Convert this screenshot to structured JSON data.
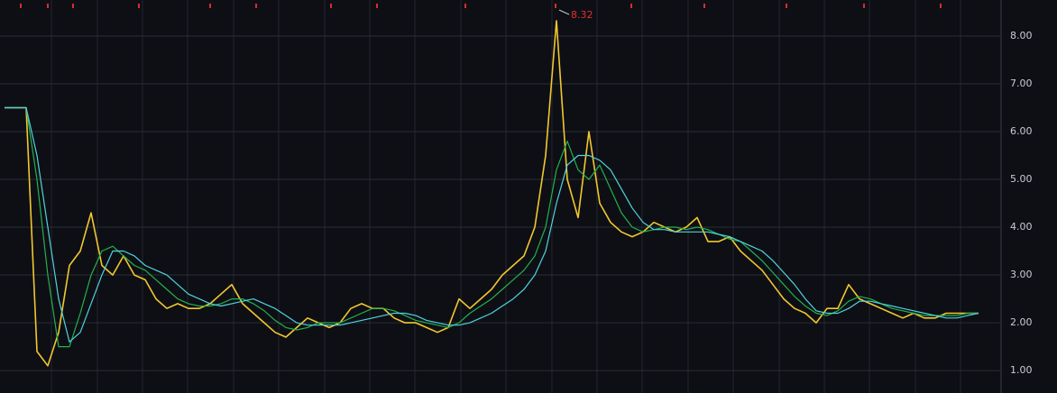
{
  "chart_data": {
    "type": "line",
    "annotation": 8.32,
    "ylim": [
      0.53,
      8.66
    ],
    "yticks": [
      {
        "value": 1,
        "label": "1.00"
      },
      {
        "value": 2,
        "label": "2.00"
      },
      {
        "value": 3,
        "label": "3.00"
      },
      {
        "value": 4,
        "label": "4.00"
      },
      {
        "value": 5,
        "label": "5.00"
      },
      {
        "value": 6,
        "label": "6.00"
      },
      {
        "value": 7,
        "label": "7.00"
      },
      {
        "value": 8,
        "label": "8.00"
      }
    ],
    "grid": true,
    "series": [
      {
        "color": "#f2c72e",
        "values": [
          6.5,
          6.5,
          6.5,
          1.4,
          1.1,
          1.8,
          3.2,
          3.5,
          4.3,
          3.2,
          3.0,
          3.4,
          3.0,
          2.9,
          2.5,
          2.3,
          2.4,
          2.3,
          2.3,
          2.4,
          2.6,
          2.8,
          2.4,
          2.2,
          2.0,
          1.8,
          1.7,
          1.9,
          2.1,
          2.0,
          1.9,
          2.0,
          2.3,
          2.4,
          2.3,
          2.3,
          2.1,
          2.0,
          2.0,
          1.9,
          1.8,
          1.9,
          2.5,
          2.3,
          2.5,
          2.7,
          3.0,
          3.2,
          3.4,
          4.0,
          5.5,
          8.32,
          5.0,
          4.2,
          6.0,
          4.5,
          4.1,
          3.9,
          3.8,
          3.9,
          4.1,
          4.0,
          3.9,
          4.0,
          4.2,
          3.7,
          3.7,
          3.8,
          3.5,
          3.3,
          3.1,
          2.8,
          2.5,
          2.3,
          2.2,
          2.0,
          2.3,
          2.3,
          2.8,
          2.5,
          2.4,
          2.3,
          2.2,
          2.1,
          2.2,
          2.1,
          2.1,
          2.2,
          2.2,
          2.2,
          2.2
        ]
      },
      {
        "color": "#23b14d",
        "values": [
          6.5,
          6.5,
          6.5,
          5.0,
          3.0,
          1.5,
          1.5,
          2.2,
          3.0,
          3.5,
          3.6,
          3.4,
          3.2,
          3.1,
          2.9,
          2.7,
          2.5,
          2.4,
          2.35,
          2.35,
          2.4,
          2.5,
          2.5,
          2.4,
          2.25,
          2.05,
          1.9,
          1.85,
          1.9,
          2.0,
          2.0,
          2.0,
          2.1,
          2.2,
          2.3,
          2.3,
          2.25,
          2.15,
          2.05,
          2.0,
          1.95,
          1.9,
          2.0,
          2.2,
          2.35,
          2.5,
          2.7,
          2.9,
          3.1,
          3.4,
          4.0,
          5.2,
          5.8,
          5.2,
          5.0,
          5.3,
          4.8,
          4.3,
          4.0,
          3.9,
          3.95,
          4.0,
          4.0,
          3.95,
          4.0,
          3.95,
          3.85,
          3.75,
          3.7,
          3.5,
          3.3,
          3.05,
          2.8,
          2.55,
          2.35,
          2.2,
          2.15,
          2.25,
          2.45,
          2.55,
          2.5,
          2.4,
          2.3,
          2.25,
          2.2,
          2.15,
          2.15,
          2.15,
          2.15,
          2.2,
          2.2
        ]
      },
      {
        "color": "#4fd3de",
        "values": [
          6.5,
          6.5,
          6.5,
          5.5,
          4.0,
          2.5,
          1.6,
          1.8,
          2.4,
          3.0,
          3.5,
          3.5,
          3.4,
          3.2,
          3.1,
          3.0,
          2.8,
          2.6,
          2.5,
          2.4,
          2.35,
          2.4,
          2.45,
          2.5,
          2.4,
          2.3,
          2.15,
          2.0,
          1.95,
          1.95,
          1.95,
          1.95,
          2.0,
          2.05,
          2.1,
          2.15,
          2.2,
          2.2,
          2.15,
          2.05,
          2.0,
          1.95,
          1.95,
          2.0,
          2.1,
          2.2,
          2.35,
          2.5,
          2.7,
          3.0,
          3.5,
          4.5,
          5.3,
          5.5,
          5.5,
          5.4,
          5.2,
          4.8,
          4.4,
          4.1,
          3.95,
          3.95,
          3.9,
          3.9,
          3.9,
          3.9,
          3.85,
          3.8,
          3.7,
          3.6,
          3.5,
          3.3,
          3.05,
          2.8,
          2.5,
          2.25,
          2.2,
          2.2,
          2.3,
          2.45,
          2.45,
          2.4,
          2.35,
          2.3,
          2.25,
          2.2,
          2.15,
          2.1,
          2.1,
          2.15,
          2.2
        ]
      }
    ]
  }
}
